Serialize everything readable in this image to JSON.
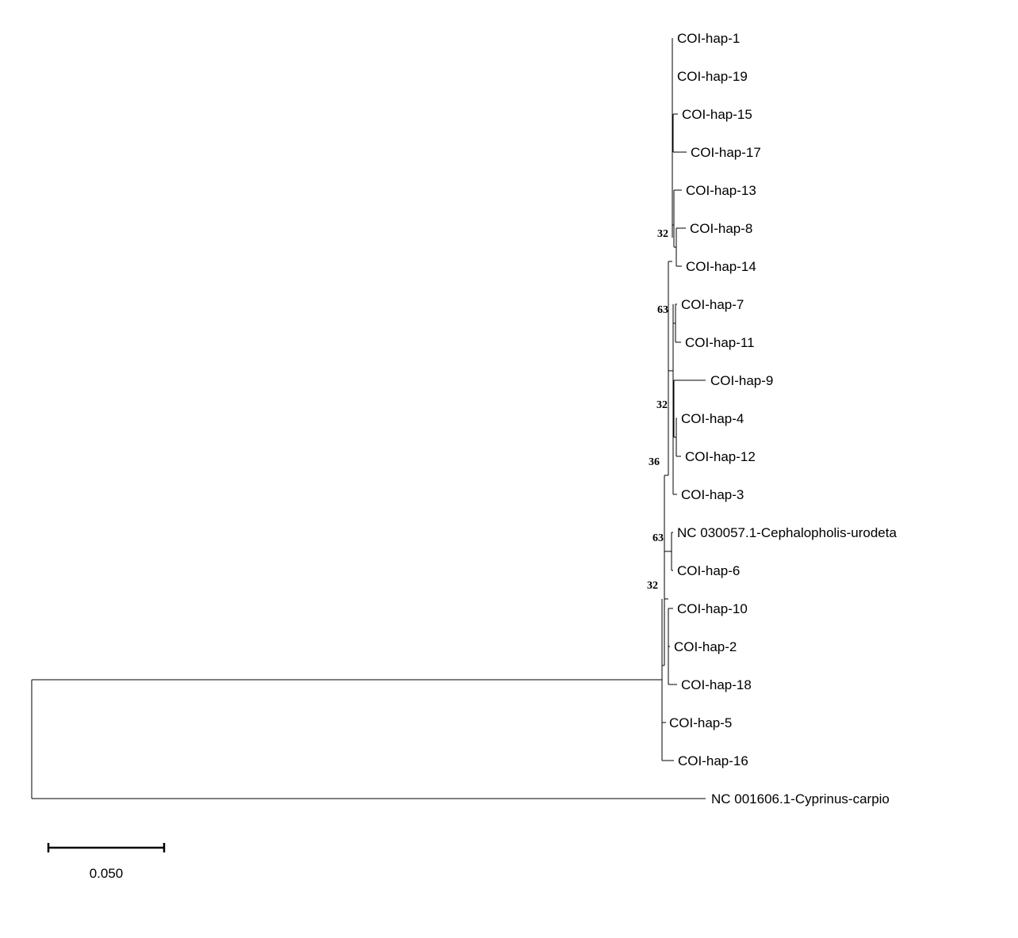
{
  "tree": {
    "leaves": [
      "COI-hap-1",
      "COI-hap-19",
      "COI-hap-15",
      "COI-hap-17",
      "COI-hap-13",
      "COI-hap-8",
      "COI-hap-14",
      "COI-hap-7",
      "COI-hap-11",
      "COI-hap-9",
      "COI-hap-4",
      "COI-hap-12",
      "COI-hap-3",
      "NC 030057.1-Cephalopholis-urodeta",
      "COI-hap-6",
      "COI-hap-10",
      "COI-hap-2",
      "COI-hap-18",
      "COI-hap-5",
      "COI-hap-16",
      "NC 001606.1-Cyprinus-carpio"
    ],
    "support_values": [
      "32",
      "63",
      "32",
      "36",
      "63",
      "32"
    ],
    "line_color": "#000000",
    "background_color": "#ffffff"
  },
  "scale_bar": {
    "label": "0.050",
    "length": 0.05
  }
}
